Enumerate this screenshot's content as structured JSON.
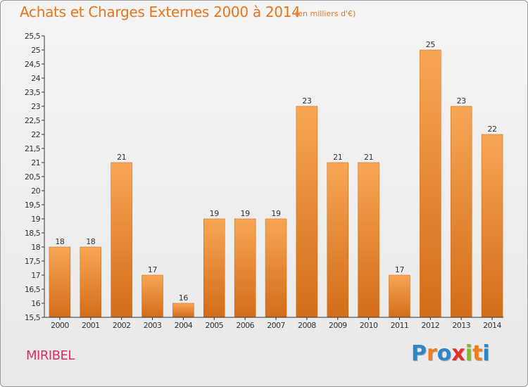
{
  "header": {
    "title": "Achats et Charges Externes 2000 à 2014",
    "unit": "(en milliers d'€)"
  },
  "footer": {
    "commune": "MIRIBEL",
    "brand_letters": [
      "P",
      "r",
      "o",
      "x",
      "i",
      "t",
      "i"
    ]
  },
  "colors": {
    "title": "#e8741c",
    "commune": "#e22a6a",
    "bar_light": "#f7a654",
    "bar_dark": "#d46c18",
    "brand": [
      "#2d86c7",
      "#f07d1a",
      "#2d86c7",
      "#e8302a",
      "#7cbf2a",
      "#f07d1a",
      "#2d86c7"
    ]
  },
  "chart_data": {
    "type": "bar",
    "title": "Achats et Charges Externes 2000 à 2014",
    "xlabel": "",
    "ylabel": "",
    "categories": [
      "2000",
      "2001",
      "2002",
      "2003",
      "2004",
      "2005",
      "2006",
      "2007",
      "2008",
      "2009",
      "2010",
      "2011",
      "2012",
      "2013",
      "2014"
    ],
    "values": [
      18,
      18,
      21,
      17,
      16,
      19,
      19,
      19,
      23,
      21,
      21,
      17,
      25,
      23,
      22
    ],
    "ylim": [
      15.5,
      25.5
    ],
    "yticks": [
      "15,5",
      "16",
      "16,5",
      "17",
      "17,5",
      "18",
      "18,5",
      "19",
      "19,5",
      "20",
      "20,5",
      "21",
      "21,5",
      "22",
      "22,5",
      "23",
      "23,5",
      "24",
      "24,5",
      "25",
      "25,5"
    ],
    "grid": false,
    "legend": "none"
  }
}
